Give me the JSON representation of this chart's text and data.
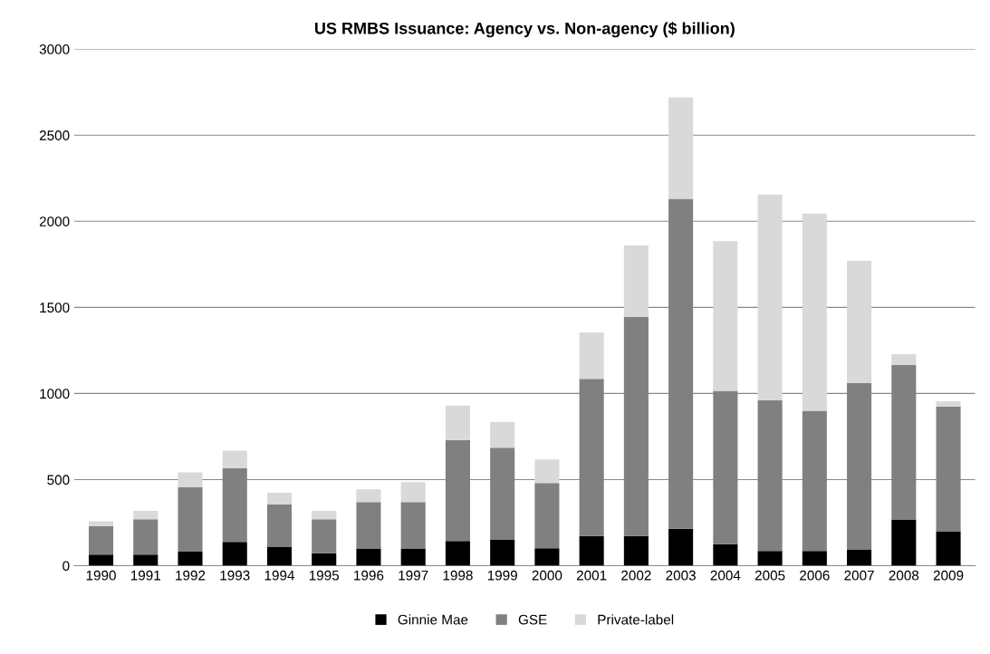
{
  "chart_data": {
    "type": "bar",
    "title": "US RMBS Issuance: Agency vs. Non-agency ($ billion)",
    "stacked": true,
    "categories": [
      "1990",
      "1991",
      "1992",
      "1993",
      "1994",
      "1995",
      "1996",
      "1997",
      "1998",
      "1999",
      "2000",
      "2001",
      "2002",
      "2003",
      "2004",
      "2005",
      "2006",
      "2007",
      "2008",
      "2009"
    ],
    "series": [
      {
        "name": "Ginnie Mae",
        "color": "#000000",
        "values": [
          65,
          65,
          82,
          138,
          108,
          72,
          100,
          100,
          143,
          150,
          102,
          172,
          172,
          215,
          125,
          85,
          85,
          95,
          268,
          200
        ]
      },
      {
        "name": "GSE",
        "color": "#808080",
        "values": [
          165,
          205,
          373,
          427,
          247,
          198,
          270,
          270,
          587,
          535,
          378,
          913,
          1273,
          1915,
          890,
          875,
          815,
          965,
          897,
          725
        ]
      },
      {
        "name": "Private-label",
        "color": "#d9d9d9",
        "values": [
          28,
          48,
          87,
          103,
          68,
          48,
          73,
          115,
          200,
          150,
          137,
          270,
          415,
          590,
          870,
          1195,
          1145,
          710,
          63,
          30
        ]
      }
    ],
    "ylim": [
      0,
      3000
    ],
    "yticks": [
      0,
      500,
      1000,
      1500,
      2000,
      2500,
      3000
    ],
    "grid": "y",
    "legend": "bottom"
  }
}
